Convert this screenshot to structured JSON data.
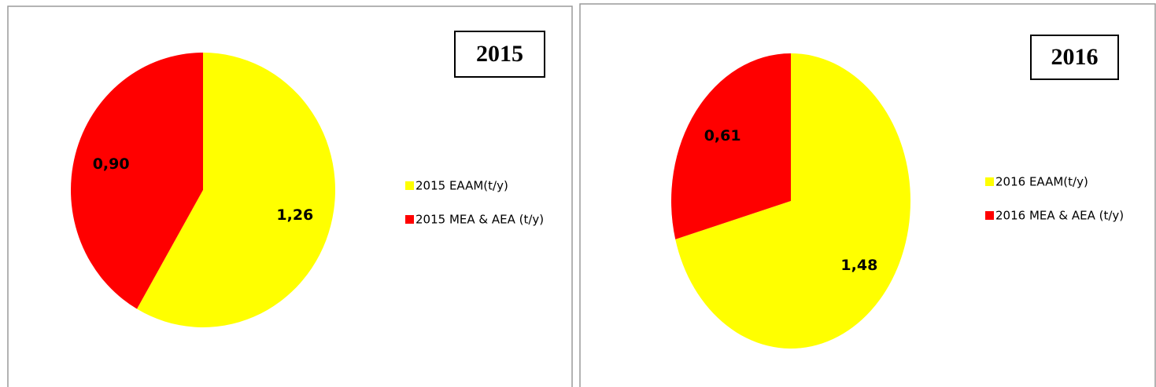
{
  "chart_data": [
    {
      "type": "pie",
      "title": "2015",
      "categories": [
        "2015 EAAM(t/y)",
        "2015 MEA & AEA (t/y)"
      ],
      "values": [
        1.26,
        0.9
      ],
      "value_labels": [
        "1,26",
        "0,90"
      ],
      "colors": [
        "#ffff00",
        "#ff0000"
      ]
    },
    {
      "type": "pie",
      "title": "2016",
      "categories": [
        "2016 EAAM(t/y)",
        "2016 MEA & AEA (t/y)"
      ],
      "values": [
        1.48,
        0.61
      ],
      "value_labels": [
        "1,48",
        "0,61"
      ],
      "colors": [
        "#ffff00",
        "#ff0000"
      ]
    }
  ]
}
